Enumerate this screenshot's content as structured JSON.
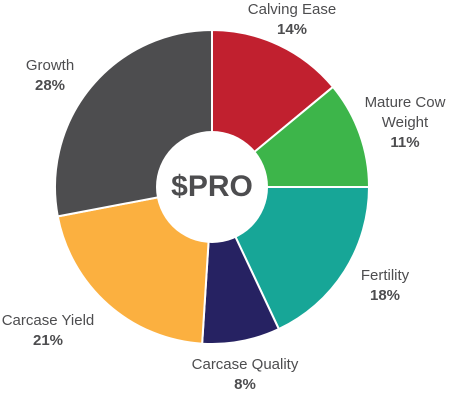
{
  "chart_data": {
    "type": "pie",
    "center_label": "$PRO",
    "categories": [
      "Calving Ease",
      "Mature Cow Weight",
      "Fertility",
      "Carcase Quality",
      "Carcase Yield",
      "Growth"
    ],
    "values": [
      14,
      11,
      18,
      8,
      21,
      28
    ],
    "value_labels": [
      "14%",
      "11%",
      "18%",
      "8%",
      "21%",
      "28%"
    ],
    "colors": [
      "#c1202f",
      "#3db54a",
      "#17a697",
      "#262262",
      "#fbb040",
      "#4d4d4f"
    ]
  }
}
